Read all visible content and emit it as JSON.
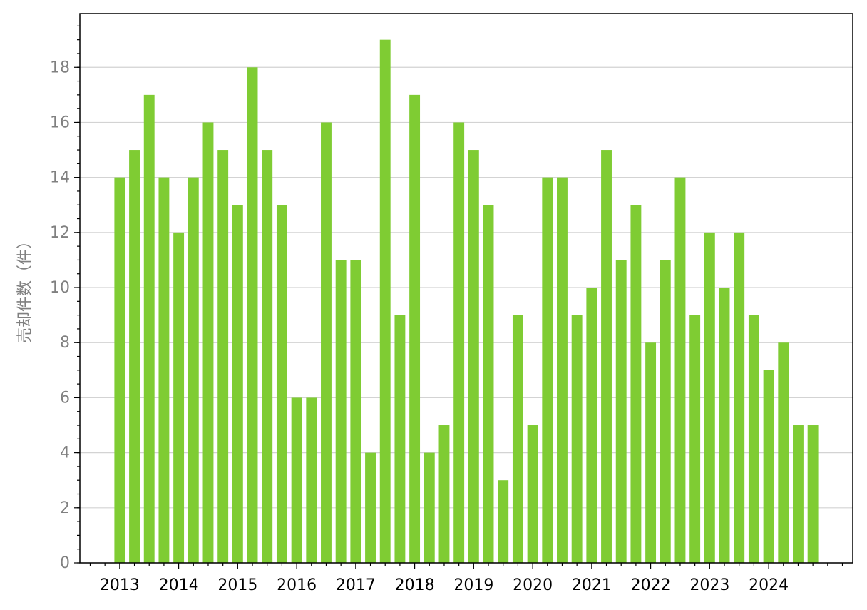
{
  "chart_data": {
    "type": "bar",
    "y_label": "売却件数（件）",
    "categories": [
      "2013",
      null,
      null,
      null,
      "2014",
      null,
      null,
      null,
      "2015",
      null,
      null,
      null,
      "2016",
      null,
      null,
      null,
      "2017",
      null,
      null,
      null,
      "2018",
      null,
      null,
      null,
      "2019",
      null,
      null,
      null,
      "2020",
      null,
      null,
      null,
      "2021",
      null,
      null,
      null,
      "2022",
      null,
      null,
      null,
      "2023",
      null,
      null,
      null,
      "2024",
      null,
      null,
      null
    ],
    "values": [
      14,
      15,
      17,
      14,
      12,
      14,
      16,
      15,
      13,
      18,
      15,
      13,
      6,
      6,
      16,
      11,
      11,
      4,
      19,
      9,
      17,
      4,
      5,
      16,
      15,
      13,
      3,
      9,
      5,
      14,
      14,
      9,
      10,
      15,
      11,
      13,
      8,
      11,
      14,
      9,
      12,
      10,
      12,
      9,
      7,
      8,
      5,
      5
    ],
    "color": "#7fcc33",
    "ylim": [
      0,
      19.95
    ],
    "yticks": [
      0,
      2,
      4,
      6,
      8,
      10,
      12,
      14,
      16,
      18
    ],
    "grid": true
  }
}
